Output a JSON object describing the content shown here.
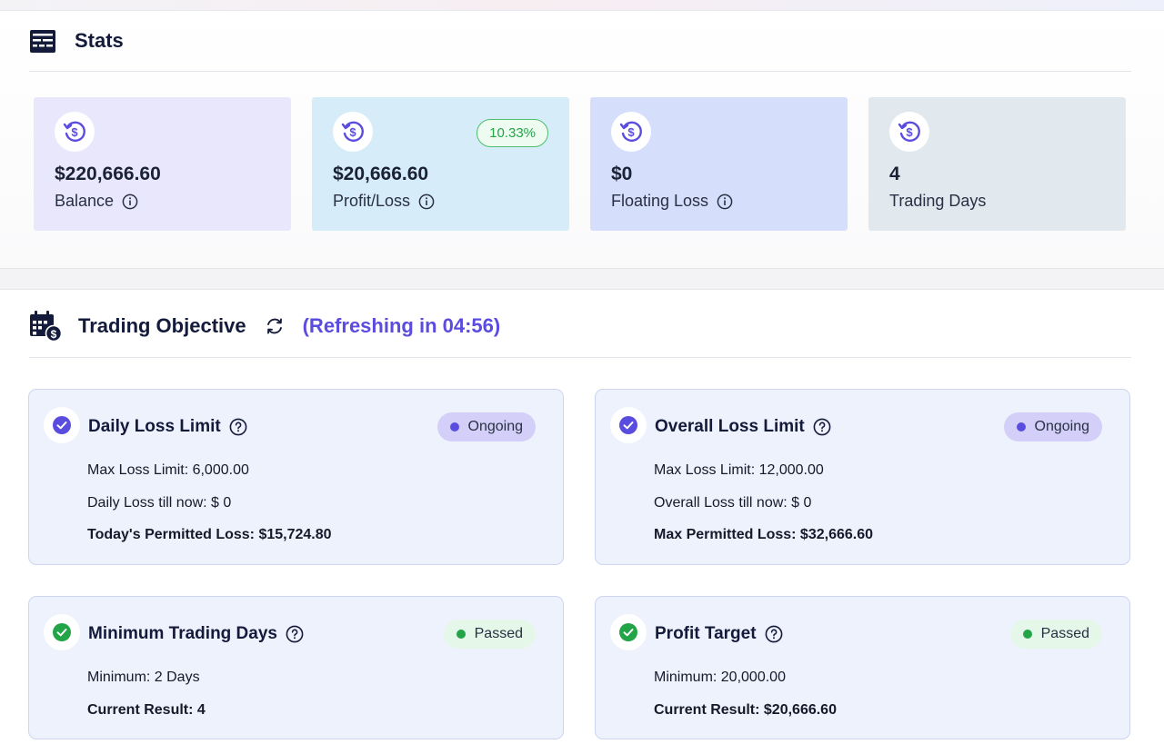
{
  "stats": {
    "title": "Stats",
    "cards": [
      {
        "value": "$220,666.60",
        "label": "Balance",
        "has_info": true,
        "bg": "#e8e7fb"
      },
      {
        "value": "$20,666.60",
        "label": "Profit/Loss",
        "has_info": true,
        "badge": "10.33%",
        "bg": "#d7ecf9"
      },
      {
        "value": "$0",
        "label": "Floating Loss",
        "has_info": true,
        "bg": "#d5defa"
      },
      {
        "value": "4",
        "label": "Trading Days",
        "has_info": false,
        "bg": "#e1e9ef"
      }
    ]
  },
  "objective": {
    "title": "Trading Objective",
    "refreshing": "(Refreshing in 04:56)",
    "cards": [
      {
        "title": "Daily Loss Limit",
        "status": "Ongoing",
        "lines": [
          "Max Loss Limit: 6,000.00",
          "Daily Loss till now: $ 0"
        ],
        "summary": "Today's Permitted Loss: $15,724.80"
      },
      {
        "title": "Overall Loss Limit",
        "status": "Ongoing",
        "lines": [
          "Max Loss Limit: 12,000.00",
          "Overall Loss till now: $ 0"
        ],
        "summary": "Max Permitted Loss: $32,666.60"
      },
      {
        "title": "Minimum Trading Days",
        "status": "Passed",
        "lines": [
          "Minimum: 2 Days"
        ],
        "summary": "Current Result: 4"
      },
      {
        "title": "Profit Target",
        "status": "Passed",
        "lines": [
          "Minimum: 20,000.00"
        ],
        "summary": "Current Result: $20,666.60"
      }
    ]
  },
  "colors": {
    "accent": "#5b4ce0",
    "passed": "#22a447",
    "card_bg": "#eef2fd"
  },
  "icons": {
    "stats": "stats-panel-icon",
    "coin": "dollar-refresh-icon",
    "info": "info-icon",
    "objective": "calendar-dollar-icon",
    "refresh": "refresh-icon",
    "help": "help-icon",
    "check": "check-circle-icon"
  }
}
